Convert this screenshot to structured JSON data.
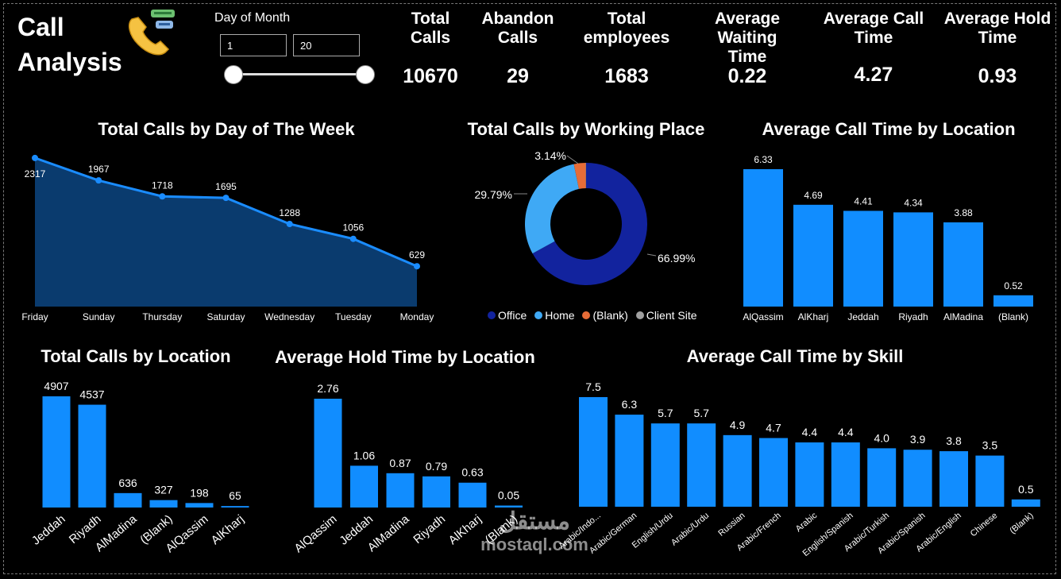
{
  "header": {
    "title_line1": "Call",
    "title_line2": "Analysis",
    "icon": "phone-icon",
    "slicer": {
      "label": "Day of Month",
      "from": "1",
      "to": "20"
    }
  },
  "kpis": [
    {
      "label1": "Total",
      "label2": "Calls",
      "value": "10670"
    },
    {
      "label1": "Abandon",
      "label2": "Calls",
      "value": "29"
    },
    {
      "label1": "Total",
      "label2": "employees",
      "value": "1683"
    },
    {
      "label1": "Average Waiting",
      "label2": "Time",
      "value": "0.22"
    },
    {
      "label1": "Average Call",
      "label2": "Time",
      "value": "4.27"
    },
    {
      "label1": "Average Hold",
      "label2": "Time",
      "value": "0.93"
    }
  ],
  "colors": {
    "bar": "#118DFF",
    "area": "#0A3B6E",
    "line": "#1A8CFF",
    "office": "#12239E",
    "home": "#3FA9F5",
    "blank": "#E66C37",
    "client": "#A0A0A0"
  },
  "chart_data": [
    {
      "id": "week",
      "type": "area",
      "title": "Total Calls by Day of The Week",
      "categories": [
        "Friday",
        "Sunday",
        "Thursday",
        "Saturday",
        "Wednesday",
        "Tuesday",
        "Monday"
      ],
      "values": [
        2317,
        1967,
        1718,
        1695,
        1288,
        1056,
        629
      ],
      "labels": [
        "2317",
        "1967",
        "1718",
        "1695",
        "1288",
        "1056",
        "629"
      ]
    },
    {
      "id": "place",
      "type": "pie",
      "title": "Total Calls by Working Place",
      "categories": [
        "Office",
        "Home",
        "(Blank)",
        "Client Site"
      ],
      "values": [
        66.99,
        29.79,
        3.14,
        0.08
      ],
      "labels": [
        "66.99%",
        "29.79%",
        "3.14%",
        ""
      ]
    },
    {
      "id": "calltime_loc",
      "type": "bar",
      "title": "Average Call Time by Location",
      "categories": [
        "AlQassim",
        "AlKharj",
        "Jeddah",
        "Riyadh",
        "AlMadina",
        "(Blank)"
      ],
      "values": [
        6.33,
        4.69,
        4.41,
        4.34,
        3.88,
        0.52
      ],
      "labels": [
        "6.33",
        "4.69",
        "4.41",
        "4.34",
        "3.88",
        "0.52"
      ]
    },
    {
      "id": "calls_loc",
      "type": "bar",
      "title": "Total Calls by Location",
      "categories": [
        "Jeddah",
        "Riyadh",
        "AlMadina",
        "(Blank)",
        "AlQassim",
        "AlKharj"
      ],
      "values": [
        4907,
        4537,
        636,
        327,
        198,
        65
      ],
      "labels": [
        "4907",
        "4537",
        "636",
        "327",
        "198",
        "65"
      ]
    },
    {
      "id": "hold_loc",
      "type": "bar",
      "title": "Average Hold Time by Location",
      "categories": [
        "AlQassim",
        "Jeddah",
        "AlMadina",
        "Riyadh",
        "AlKharj",
        "(Blank)"
      ],
      "values": [
        2.76,
        1.06,
        0.87,
        0.79,
        0.63,
        0.05
      ],
      "labels": [
        "2.76",
        "1.06",
        "0.87",
        "0.79",
        "0.63",
        "0.05"
      ]
    },
    {
      "id": "skill",
      "type": "bar",
      "title": "Average Call Time by Skill",
      "categories": [
        "Arabic/Indo...",
        "Arabic/German",
        "English/Urdu",
        "Arabic/Urdu",
        "Russian",
        "Arabic/French",
        "Arabic",
        "English/Spanish",
        "Arabic/Turkish",
        "Arabic/Spanish",
        "Arabic/English",
        "Chinese",
        "(Blank)"
      ],
      "values": [
        7.5,
        6.3,
        5.7,
        5.7,
        4.9,
        4.7,
        4.4,
        4.4,
        4.0,
        3.9,
        3.8,
        3.5,
        0.5
      ],
      "labels": [
        "7.5",
        "6.3",
        "5.7",
        "5.7",
        "4.9",
        "4.7",
        "4.4",
        "4.4",
        "4.0",
        "3.9",
        "3.8",
        "3.5",
        "0.5"
      ]
    }
  ],
  "watermark": {
    "arabic": "مستقل",
    "latin": "mostaql.com"
  }
}
